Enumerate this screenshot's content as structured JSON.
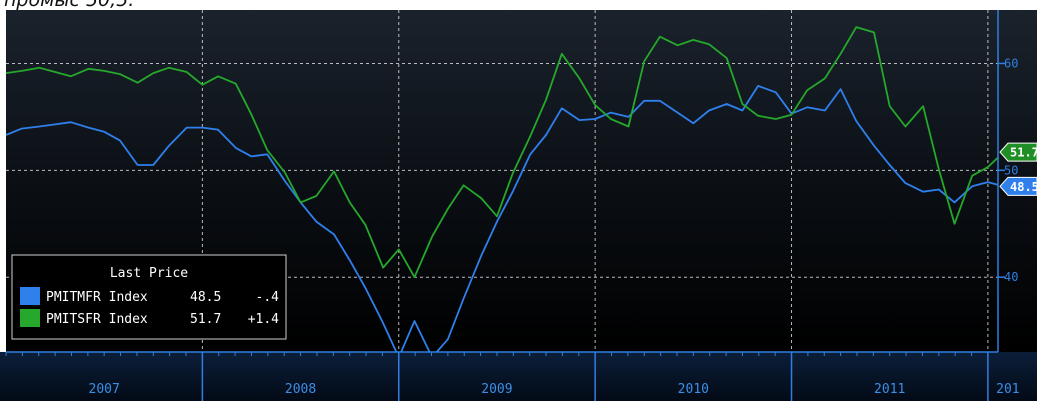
{
  "caption": "промыс 50,5.",
  "chart_data": {
    "type": "line",
    "ylim": [
      33,
      65
    ],
    "yticks": [
      40,
      50,
      60
    ],
    "xlim": [
      2007.0,
      2012.25
    ],
    "year_dividers": [
      2008,
      2009,
      2010,
      2011,
      2012
    ],
    "years": [
      "2007",
      "2008",
      "2009",
      "2010",
      "2011",
      "201"
    ],
    "legend": {
      "header": "Last Price",
      "placement": "bottom-left"
    },
    "series": [
      {
        "name": "PMITMFR Index",
        "last": "48.5",
        "change": "-.4",
        "badge": "48.5",
        "color": "#2f80ed",
        "x": [
          2007.0,
          2007.08,
          2007.17,
          2007.25,
          2007.33,
          2007.42,
          2007.5,
          2007.58,
          2007.67,
          2007.75,
          2007.83,
          2007.92,
          2008.0,
          2008.08,
          2008.17,
          2008.25,
          2008.33,
          2008.42,
          2008.5,
          2008.58,
          2008.67,
          2008.75,
          2008.83,
          2008.92,
          2009.0,
          2009.08,
          2009.17,
          2009.25,
          2009.33,
          2009.42,
          2009.5,
          2009.58,
          2009.67,
          2009.75,
          2009.83,
          2009.92,
          2010.0,
          2010.08,
          2010.17,
          2010.25,
          2010.33,
          2010.42,
          2010.5,
          2010.58,
          2010.67,
          2010.75,
          2010.83,
          2010.92,
          2011.0,
          2011.08,
          2011.17,
          2011.25,
          2011.33,
          2011.42,
          2011.5,
          2011.58,
          2011.67,
          2011.75,
          2011.83,
          2011.92,
          2012.0,
          2012.08
        ],
        "values": [
          53.3,
          53.9,
          54.1,
          54.3,
          54.5,
          54.0,
          53.6,
          52.8,
          50.5,
          50.5,
          52.3,
          54.0,
          54.0,
          53.8,
          52.1,
          51.3,
          51.5,
          49.0,
          47.0,
          45.2,
          44.0,
          41.6,
          39.0,
          35.7,
          32.5,
          35.9,
          32.5,
          34.2,
          38.0,
          42.0,
          45.2,
          48.0,
          51.5,
          53.3,
          55.8,
          54.7,
          54.8,
          55.4,
          55.0,
          56.5,
          56.5,
          55.4,
          54.4,
          55.6,
          56.2,
          55.6,
          57.9,
          57.3,
          55.3,
          55.9,
          55.6,
          57.6,
          54.6,
          52.3,
          50.5,
          48.8,
          48.0,
          48.2,
          47.0,
          48.5,
          48.9,
          48.5
        ]
      },
      {
        "name": "PMITSFR Index",
        "last": "51.7",
        "change": "+1.4",
        "badge": "51.7",
        "color": "#25a82b",
        "x": [
          2007.0,
          2007.08,
          2007.17,
          2007.25,
          2007.33,
          2007.42,
          2007.5,
          2007.58,
          2007.67,
          2007.75,
          2007.83,
          2007.92,
          2008.0,
          2008.08,
          2008.17,
          2008.25,
          2008.33,
          2008.42,
          2008.5,
          2008.58,
          2008.67,
          2008.75,
          2008.83,
          2008.92,
          2009.0,
          2009.08,
          2009.17,
          2009.25,
          2009.33,
          2009.42,
          2009.5,
          2009.58,
          2009.67,
          2009.75,
          2009.83,
          2009.92,
          2010.0,
          2010.08,
          2010.17,
          2010.25,
          2010.33,
          2010.42,
          2010.5,
          2010.58,
          2010.67,
          2010.75,
          2010.83,
          2010.92,
          2011.0,
          2011.08,
          2011.17,
          2011.25,
          2011.33,
          2011.42,
          2011.5,
          2011.58,
          2011.67,
          2011.75,
          2011.83,
          2011.92,
          2012.0,
          2012.08
        ],
        "values": [
          59.1,
          59.3,
          59.6,
          59.2,
          58.8,
          59.5,
          59.3,
          59.0,
          58.2,
          59.1,
          59.6,
          59.2,
          58.0,
          58.8,
          58.1,
          55.2,
          51.9,
          49.8,
          47.0,
          47.6,
          49.9,
          47.0,
          44.9,
          40.9,
          42.6,
          40.0,
          43.8,
          46.4,
          48.6,
          47.4,
          45.7,
          49.7,
          53.2,
          56.6,
          60.9,
          58.6,
          56.1,
          54.8,
          54.1,
          60.2,
          62.5,
          61.7,
          62.2,
          61.8,
          60.5,
          56.2,
          55.1,
          54.8,
          55.2,
          57.5,
          58.6,
          60.9,
          63.4,
          62.9,
          56.0,
          54.1,
          56.0,
          50.1,
          45.0,
          49.5,
          50.3,
          51.7
        ]
      }
    ]
  }
}
